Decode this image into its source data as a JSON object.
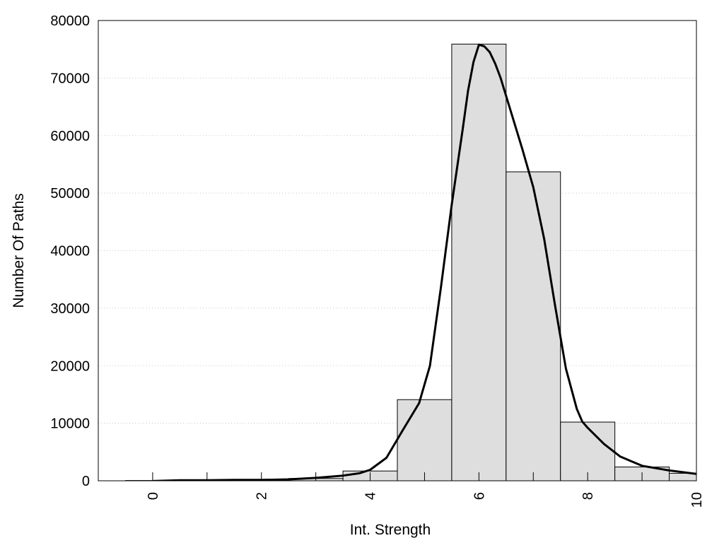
{
  "chart_data": {
    "type": "bar",
    "title": "",
    "xlabel": "Int. Strength",
    "ylabel": "Number Of Paths",
    "xlim": [
      -1,
      10
    ],
    "ylim": [
      0,
      80000
    ],
    "x_ticks": [
      "0",
      "2",
      "4",
      "6",
      "8",
      "10"
    ],
    "y_ticks": [
      "0",
      "10000",
      "20000",
      "30000",
      "40000",
      "50000",
      "60000",
      "70000",
      "80000"
    ],
    "grid": "horizontal dotted",
    "bar_color": "#dedede",
    "histogram": {
      "bin_edges": [
        -0.5,
        0.5,
        1.5,
        2.5,
        3.5,
        4.5,
        5.5,
        6.5,
        7.5,
        8.5,
        9.5,
        10.5
      ],
      "values": [
        50,
        100,
        150,
        400,
        1700,
        14100,
        75900,
        53700,
        10200,
        2400,
        1300
      ]
    },
    "fit_curve": {
      "x": [
        0,
        0.5,
        1,
        1.5,
        2,
        2.5,
        3,
        3.5,
        3.8,
        4,
        4.3,
        4.6,
        4.9,
        5.1,
        5.3,
        5.5,
        5.7,
        5.8,
        5.9,
        6,
        6.1,
        6.2,
        6.3,
        6.4,
        6.6,
        6.8,
        7,
        7.2,
        7.4,
        7.6,
        7.8,
        7.9,
        8,
        8.3,
        8.6,
        9,
        9.5,
        10
      ],
      "y": [
        -50,
        100,
        100,
        150,
        150,
        250,
        500,
        900,
        1300,
        1900,
        4000,
        8800,
        13500,
        20000,
        33500,
        48000,
        61000,
        67800,
        72800,
        75800,
        75500,
        74500,
        72500,
        70000,
        63800,
        57600,
        51000,
        42000,
        30500,
        19500,
        12500,
        10300,
        9200,
        6400,
        4200,
        2600,
        1800,
        1200
      ]
    }
  }
}
